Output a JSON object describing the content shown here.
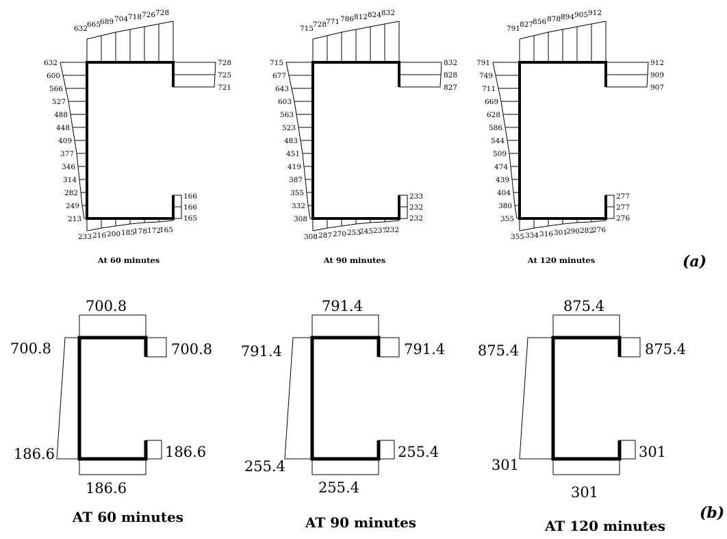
{
  "panel_a": {
    "label": "(a)",
    "panels": [
      {
        "caption": "At 60 minutes",
        "top": [
          "632",
          "665",
          "689",
          "704",
          "718",
          "726",
          "728"
        ],
        "left": [
          "632",
          "600",
          "566",
          "527",
          "488",
          "448",
          "409",
          "377",
          "346",
          "314",
          "282",
          "249",
          "213"
        ],
        "bottom": [
          "233",
          "216",
          "200",
          "185",
          "178",
          "172",
          "165"
        ],
        "top_lip": [
          "728",
          "725",
          "721"
        ],
        "bottom_lip": [
          "166",
          "166",
          "165"
        ]
      },
      {
        "caption": "At 90 minutes",
        "top": [
          "715",
          "728",
          "771",
          "786",
          "812",
          "824",
          "832"
        ],
        "left": [
          "715",
          "677",
          "643",
          "603",
          "563",
          "523",
          "483",
          "451",
          "419",
          "387",
          "355",
          "332",
          "308"
        ],
        "bottom": [
          "308",
          "287",
          "270",
          "253",
          "245",
          "237",
          "232"
        ],
        "top_lip": [
          "832",
          "828",
          "827"
        ],
        "bottom_lip": [
          "233",
          "232",
          "232"
        ]
      },
      {
        "caption": "At 120 minutes",
        "top": [
          "791",
          "827",
          "856",
          "878",
          "894",
          "905",
          "912"
        ],
        "left": [
          "791",
          "749",
          "711",
          "669",
          "628",
          "586",
          "544",
          "509",
          "474",
          "439",
          "404",
          "380",
          "355"
        ],
        "bottom": [
          "355",
          "334",
          "316",
          "301",
          "290",
          "282",
          "276"
        ],
        "top_lip": [
          "912",
          "909",
          "907"
        ],
        "bottom_lip": [
          "277",
          "277",
          "276"
        ]
      }
    ]
  },
  "panel_b": {
    "label": "(b)",
    "panels": [
      {
        "caption": "AT 60 minutes",
        "top": "700.8",
        "left_top": "700.8",
        "lip_top": "700.8",
        "left_bottom": "186.6",
        "lip_bottom": "186.6",
        "bottom": "186.6"
      },
      {
        "caption": "AT 90 minutes",
        "top": "791.4",
        "left_top": "791.4",
        "lip_top": "791.4",
        "left_bottom": "255.4",
        "lip_bottom": "255.4",
        "bottom": "255.4"
      },
      {
        "caption": "AT 120 minutes",
        "top": "875.4",
        "left_top": "875.4",
        "lip_top": "875.4",
        "left_bottom": "301",
        "lip_bottom": "301",
        "bottom": "301"
      }
    ]
  }
}
